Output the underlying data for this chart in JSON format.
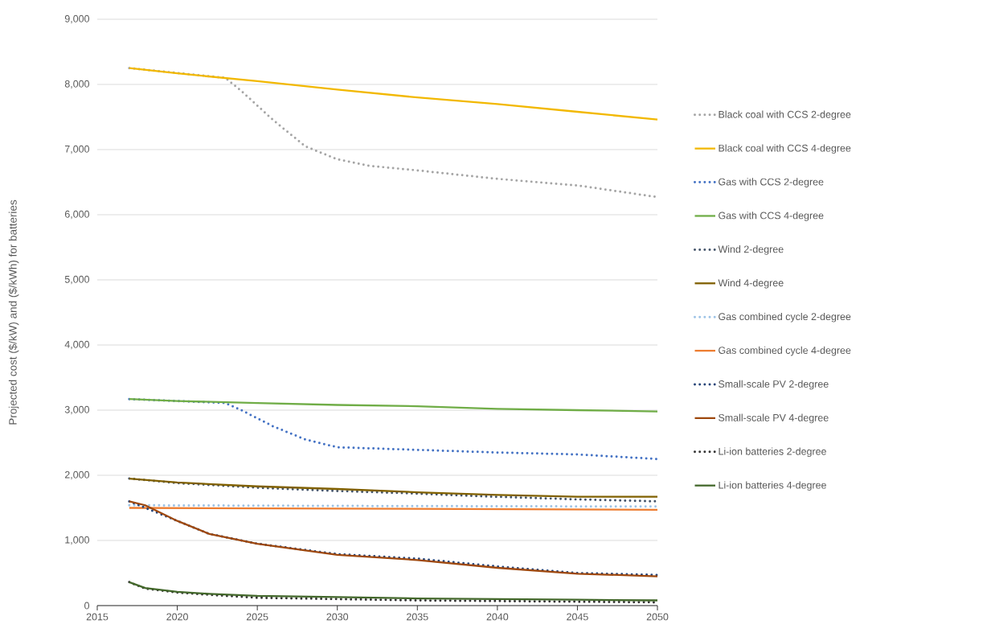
{
  "chart_data": {
    "type": "line",
    "ylabel": "Projected cost ($/kW) and ($/kWh) for batteries",
    "xlim": [
      2015,
      2050
    ],
    "xticks": [
      2015,
      2020,
      2025,
      2030,
      2035,
      2040,
      2045,
      2050
    ],
    "ylim": [
      0,
      9000
    ],
    "yticks": [
      0,
      {
        "value": 1000,
        "label": "1,000"
      },
      {
        "value": 2000,
        "label": "2,000"
      },
      {
        "value": 3000,
        "label": "3,000"
      },
      {
        "value": 4000,
        "label": "4,000"
      },
      {
        "value": 5000,
        "label": "5,000"
      },
      {
        "value": 6000,
        "label": "6,000"
      },
      {
        "value": 7000,
        "label": "7,000"
      },
      {
        "value": 8000,
        "label": "8,000"
      },
      {
        "value": 9000,
        "label": "9,000"
      }
    ],
    "grid": "y",
    "legend": "right",
    "marker": "none",
    "series": [
      {
        "name": "Black coal with CCS 2-degree",
        "color": "#a5a5a5",
        "line_style": "dotted",
        "x": [
          2017,
          2020,
          2023,
          2024,
          2026,
          2028,
          2030,
          2032,
          2035,
          2040,
          2045,
          2050
        ],
        "values": [
          8250,
          null,
          8100,
          7900,
          7450,
          7050,
          6850,
          6750,
          6680,
          6550,
          6450,
          6270
        ]
      },
      {
        "name": "Black coal with CCS 4-degree",
        "color": "#f2b800",
        "line_style": "solid",
        "x": [
          2017,
          2020,
          2025,
          2030,
          2035,
          2040,
          2045,
          2050
        ],
        "values": [
          8250,
          8170,
          8050,
          7920,
          7800,
          7700,
          7580,
          7460
        ]
      },
      {
        "name": "Gas with CCS 2-degree",
        "color": "#4472c4",
        "line_style": "dotted",
        "x": [
          2017,
          2020,
          2023,
          2024,
          2026,
          2028,
          2030,
          2035,
          2040,
          2045,
          2050
        ],
        "values": [
          3170,
          3140,
          3110,
          3000,
          2750,
          2550,
          2430,
          2390,
          2350,
          2320,
          2250
        ]
      },
      {
        "name": "Gas with CCS 4-degree",
        "color": "#70ad47",
        "line_style": "solid",
        "x": [
          2017,
          2020,
          2025,
          2030,
          2035,
          2040,
          2045,
          2050
        ],
        "values": [
          3170,
          3140,
          3110,
          3080,
          3060,
          3020,
          3000,
          2980
        ]
      },
      {
        "name": "Wind 2-degree",
        "color": "#44546a",
        "line_style": "dotted",
        "x": [
          2017,
          2020,
          2025,
          2030,
          2035,
          2040,
          2045,
          2050
        ],
        "values": [
          1950,
          1880,
          1810,
          1760,
          1720,
          1670,
          1630,
          1600
        ]
      },
      {
        "name": "Wind 4-degree",
        "color": "#806000",
        "line_style": "solid",
        "x": [
          2017,
          2020,
          2025,
          2030,
          2035,
          2040,
          2045,
          2050
        ],
        "values": [
          1950,
          1890,
          1830,
          1790,
          1740,
          1700,
          1670,
          1670
        ]
      },
      {
        "name": "Gas combined cycle 2-degree",
        "color": "#9dc3e6",
        "line_style": "dotted",
        "x": [
          2017,
          2030,
          2050
        ],
        "values": [
          1540,
          1530,
          1520
        ]
      },
      {
        "name": "Gas combined cycle 4-degree",
        "color": "#ed7d31",
        "line_style": "solid",
        "x": [
          2017,
          2030,
          2050
        ],
        "values": [
          1500,
          1490,
          1470
        ]
      },
      {
        "name": "Small-scale PV 2-degree",
        "color": "#264478",
        "line_style": "dotted",
        "x": [
          2017,
          2019,
          2021,
          2022,
          2025,
          2030,
          2035,
          2040,
          2045,
          2050
        ],
        "values": [
          1600,
          1400,
          1200,
          1100,
          950,
          790,
          720,
          600,
          500,
          470
        ]
      },
      {
        "name": "Small-scale PV 4-degree",
        "color": "#9e480e",
        "line_style": "solid",
        "x": [
          2017,
          2018,
          2020,
          2022,
          2025,
          2030,
          2035,
          2040,
          2045,
          2050
        ],
        "values": [
          1600,
          1540,
          1300,
          1100,
          950,
          780,
          700,
          580,
          490,
          450
        ]
      },
      {
        "name": "Li-ion batteries 2-degree",
        "color": "#333333",
        "line_style": "dotted",
        "x": [
          2017,
          2018,
          2020,
          2023,
          2025,
          2030,
          2035,
          2040,
          2045,
          2050
        ],
        "values": [
          360,
          260,
          200,
          150,
          120,
          100,
          80,
          70,
          60,
          50
        ]
      },
      {
        "name": "Li-ion batteries 4-degree",
        "color": "#43682b",
        "line_style": "solid",
        "x": [
          2017,
          2018,
          2020,
          2022,
          2025,
          2030,
          2035,
          2040,
          2045,
          2050
        ],
        "values": [
          360,
          270,
          210,
          180,
          150,
          130,
          110,
          100,
          90,
          80
        ]
      }
    ]
  }
}
